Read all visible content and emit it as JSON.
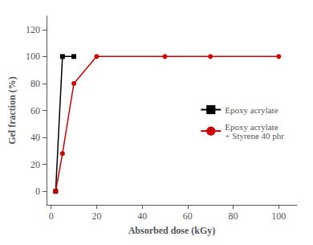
{
  "chart_data": {
    "type": "line",
    "xlabel": "Absorbed dose (kGy)",
    "ylabel": "Gel fraction (%)",
    "series": [
      {
        "name": "Epoxy acrylate",
        "color": "#000000",
        "marker": "square",
        "line_style": "solid",
        "x": [
          2,
          5,
          10
        ],
        "values": [
          0,
          100,
          100
        ]
      },
      {
        "name": "Epoxy acrylate\n+ Styrene 40 phr",
        "color": "#cc0000",
        "marker": "circle",
        "line_style": "solid",
        "x": [
          2,
          5,
          10,
          20,
          50,
          70,
          100
        ],
        "values": [
          0,
          28,
          80,
          100,
          100,
          100,
          100
        ]
      }
    ],
    "xlim": [
      -2,
      108
    ],
    "ylim": [
      -10,
      130
    ],
    "xticks": [
      0,
      20,
      40,
      60,
      80,
      100
    ],
    "yticks": [
      0,
      20,
      40,
      60,
      80,
      100,
      120
    ],
    "legend": "right",
    "grid": false
  }
}
